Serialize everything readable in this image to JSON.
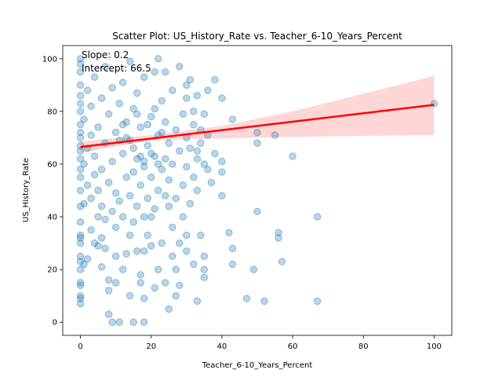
{
  "chart_data": {
    "type": "scatter",
    "title": "Scatter Plot: US_History_Rate vs. Teacher_6-10_Years_Percent",
    "xlabel": "Teacher_6-10_Years_Percent",
    "ylabel": "US_History_Rate",
    "xlim": [
      -5,
      105
    ],
    "ylim": [
      -5,
      105
    ],
    "xticks": [
      0,
      20,
      40,
      60,
      80,
      100
    ],
    "yticks": [
      0,
      20,
      40,
      60,
      80,
      100
    ],
    "grid": false,
    "annotations": [
      "Slope: 0.2",
      "Intercept: 66.5"
    ],
    "regression": {
      "slope": 0.16,
      "intercept": 66.5,
      "x_range": [
        0,
        100
      ],
      "color": "#ff0000"
    },
    "confidence_band": {
      "x": [
        0,
        20,
        40,
        60,
        80,
        100
      ],
      "lower": [
        64.3,
        69.0,
        69.8,
        70.3,
        70.7,
        71.0
      ],
      "upper": [
        68.6,
        71.0,
        74.5,
        80.0,
        86.7,
        93.5
      ],
      "color": "#ffcccc"
    },
    "point_color": "#1f77b4",
    "series": [
      {
        "points": [
          [
            100,
            83
          ],
          [
            67,
            40
          ],
          [
            67,
            8
          ],
          [
            60,
            63
          ],
          [
            57,
            23
          ],
          [
            56,
            32
          ],
          [
            56,
            34
          ],
          [
            55,
            71
          ],
          [
            52,
            8
          ],
          [
            50,
            42
          ],
          [
            50,
            68
          ],
          [
            50,
            72
          ],
          [
            49,
            20
          ],
          [
            47,
            9
          ],
          [
            43,
            22
          ],
          [
            43,
            28
          ],
          [
            43,
            77
          ],
          [
            42,
            34
          ],
          [
            40,
            48
          ],
          [
            40,
            57
          ],
          [
            40,
            61
          ],
          [
            40,
            85
          ],
          [
            37,
            53
          ],
          [
            36,
            58
          ],
          [
            35,
            60
          ],
          [
            35,
            17
          ],
          [
            35,
            20
          ],
          [
            35,
            25
          ],
          [
            34,
            33
          ],
          [
            34,
            73
          ],
          [
            33,
            8
          ],
          [
            33,
            50
          ],
          [
            33,
            65
          ],
          [
            32,
            80
          ],
          [
            32,
            22
          ],
          [
            31,
            45
          ],
          [
            30,
            33
          ],
          [
            30,
            27
          ],
          [
            30,
            85
          ],
          [
            30,
            90
          ],
          [
            29,
            40
          ],
          [
            28,
            14
          ],
          [
            28,
            30
          ],
          [
            27,
            10
          ],
          [
            27,
            20
          ],
          [
            26,
            25
          ],
          [
            26,
            36
          ],
          [
            25,
            44
          ],
          [
            25,
            5
          ],
          [
            24,
            15
          ],
          [
            24,
            48
          ],
          [
            24,
            95
          ],
          [
            23,
            30
          ],
          [
            22,
            20
          ],
          [
            22,
            100
          ],
          [
            21,
            13
          ],
          [
            20,
            40
          ],
          [
            20,
            29
          ],
          [
            19,
            33
          ],
          [
            18,
            9
          ],
          [
            18,
            0
          ],
          [
            18,
            27
          ],
          [
            17,
            15
          ],
          [
            17,
            18
          ],
          [
            16,
            27
          ],
          [
            15,
            0
          ],
          [
            15,
            38
          ],
          [
            14,
            33
          ],
          [
            14,
            10
          ],
          [
            13,
            26
          ],
          [
            12,
            20
          ],
          [
            11,
            0
          ],
          [
            10,
            25
          ],
          [
            10,
            15
          ],
          [
            9,
            0
          ],
          [
            8,
            3
          ],
          [
            8,
            12
          ],
          [
            8,
            16
          ],
          [
            7,
            28
          ],
          [
            6,
            21
          ],
          [
            6,
            32
          ],
          [
            5,
            29
          ],
          [
            5,
            40
          ],
          [
            4,
            30
          ],
          [
            3,
            35
          ],
          [
            2,
            24
          ],
          [
            1,
            22
          ],
          [
            0,
            7
          ],
          [
            0,
            9
          ],
          [
            0,
            10
          ],
          [
            0,
            14
          ],
          [
            0,
            15
          ],
          [
            0,
            20
          ],
          [
            0,
            23
          ],
          [
            0,
            25
          ],
          [
            0,
            30
          ],
          [
            0,
            32
          ],
          [
            0,
            33
          ],
          [
            0,
            38
          ],
          [
            0,
            44
          ],
          [
            0,
            50
          ],
          [
            0,
            55
          ],
          [
            0,
            58
          ],
          [
            0,
            62
          ],
          [
            0,
            65
          ],
          [
            0,
            67
          ],
          [
            0,
            70
          ],
          [
            0,
            72
          ],
          [
            0,
            75
          ],
          [
            0,
            80
          ],
          [
            0,
            83
          ],
          [
            0,
            86
          ],
          [
            0,
            90
          ],
          [
            0,
            95
          ],
          [
            0,
            98
          ],
          [
            0,
            100
          ],
          [
            1,
            45
          ],
          [
            1,
            60
          ],
          [
            1,
            77
          ],
          [
            2,
            52
          ],
          [
            2,
            66
          ],
          [
            2,
            88
          ],
          [
            3,
            47
          ],
          [
            3,
            71
          ],
          [
            3,
            82
          ],
          [
            4,
            56
          ],
          [
            4,
            63
          ],
          [
            4,
            93
          ],
          [
            5,
            50
          ],
          [
            5,
            74
          ],
          [
            6,
            44
          ],
          [
            6,
            58
          ],
          [
            6,
            85
          ],
          [
            7,
            39
          ],
          [
            7,
            68
          ],
          [
            7,
            97
          ],
          [
            8,
            53
          ],
          [
            8,
            79
          ],
          [
            9,
            42
          ],
          [
            9,
            61
          ],
          [
            9,
            89
          ],
          [
            10,
            36
          ],
          [
            10,
            49
          ],
          [
            10,
            72
          ],
          [
            11,
            46
          ],
          [
            11,
            83
          ],
          [
            12,
            40
          ],
          [
            12,
            64
          ],
          [
            12,
            91
          ],
          [
            13,
            55
          ],
          [
            13,
            76
          ],
          [
            14,
            48
          ],
          [
            14,
            69
          ],
          [
            14,
            99
          ],
          [
            15,
            57
          ],
          [
            15,
            81
          ],
          [
            16,
            44
          ],
          [
            16,
            62
          ],
          [
            16,
            87
          ],
          [
            17,
            52
          ],
          [
            17,
            74
          ],
          [
            18,
            40
          ],
          [
            18,
            59
          ],
          [
            18,
            93
          ],
          [
            19,
            47
          ],
          [
            19,
            67
          ],
          [
            20,
            55
          ],
          [
            20,
            78
          ],
          [
            21,
            43
          ],
          [
            21,
            63
          ],
          [
            21,
            95
          ],
          [
            22,
            50
          ],
          [
            22,
            71
          ],
          [
            23,
            58
          ],
          [
            23,
            84
          ],
          [
            24,
            62
          ],
          [
            24,
            76
          ],
          [
            25,
            54
          ],
          [
            25,
            68
          ],
          [
            26,
            60
          ],
          [
            26,
            88
          ],
          [
            27,
            47
          ],
          [
            27,
            73
          ],
          [
            28,
            65
          ],
          [
            28,
            97
          ],
          [
            29,
            52
          ],
          [
            29,
            79
          ],
          [
            30,
            59
          ],
          [
            30,
            70
          ],
          [
            31,
            66
          ],
          [
            31,
            92
          ],
          [
            32,
            55
          ],
          [
            32,
            75
          ],
          [
            33,
            62
          ],
          [
            33,
            86
          ],
          [
            34,
            68
          ],
          [
            35,
            79
          ],
          [
            36,
            71
          ],
          [
            36,
            88
          ],
          [
            38,
            64
          ],
          [
            38,
            92
          ],
          [
            18,
            61
          ],
          [
            19,
            75
          ],
          [
            20,
            64
          ],
          [
            21,
            81
          ],
          [
            22,
            60
          ],
          [
            23,
            72
          ],
          [
            15,
            66
          ],
          [
            16,
            79
          ],
          [
            17,
            63
          ],
          [
            13,
            70
          ],
          [
            12,
            75
          ],
          [
            11,
            69
          ]
        ]
      }
    ]
  }
}
